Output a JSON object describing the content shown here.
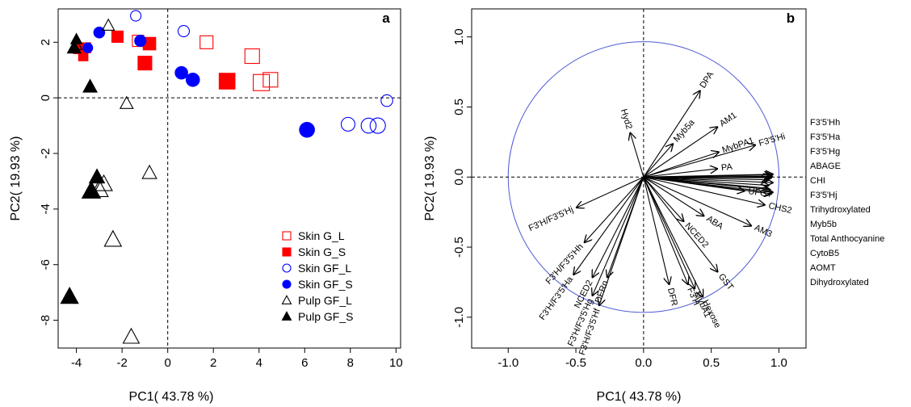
{
  "chart_data": [
    {
      "type": "scatter",
      "panel_label": "a",
      "xlabel": "PC1( 43.78 %)",
      "ylabel": "PC2( 19.93 %)",
      "xlim": [
        -4.8,
        10.2
      ],
      "ylim": [
        -9.0,
        3.2
      ],
      "xticks": [
        -4,
        -2,
        0,
        2,
        4,
        6,
        8,
        10
      ],
      "yticks": [
        -8,
        -6,
        -4,
        -2,
        0,
        2
      ],
      "reference_lines": {
        "x": 0,
        "y": 0,
        "style": "dashed"
      },
      "legend": {
        "position": "bottom-right"
      },
      "series": [
        {
          "name": "Skin G_L",
          "marker": "square",
          "filled": false,
          "color": "#ff0000",
          "points": [
            [
              -1.3,
              2.05,
              0.6
            ],
            [
              1.7,
              2.0,
              0.8
            ],
            [
              3.7,
              1.5,
              1.0
            ],
            [
              4.1,
              0.55,
              1.2
            ],
            [
              4.5,
              0.65,
              1.0
            ],
            [
              -3.6,
              1.8,
              0.45
            ]
          ]
        },
        {
          "name": "Skin G_S",
          "marker": "square",
          "filled": true,
          "color": "#ff0000",
          "points": [
            [
              -3.9,
              1.78,
              0.5
            ],
            [
              -3.7,
              1.5,
              0.35
            ],
            [
              -2.2,
              2.2,
              0.6
            ],
            [
              -0.8,
              1.95,
              0.75
            ],
            [
              -1.0,
              1.25,
              0.9
            ],
            [
              2.6,
              0.6,
              1.15
            ]
          ]
        },
        {
          "name": "Skin GF_L",
          "marker": "circle",
          "filled": false,
          "color": "#0000ff",
          "points": [
            [
              -1.4,
              2.95,
              0.5
            ],
            [
              0.7,
              2.4,
              0.6
            ],
            [
              -3.5,
              1.8,
              0.4
            ],
            [
              7.9,
              -0.95,
              0.9
            ],
            [
              8.8,
              -1.0,
              1.05
            ],
            [
              9.2,
              -1.0,
              1.1
            ],
            [
              9.6,
              -0.1,
              0.65
            ]
          ]
        },
        {
          "name": "Skin GF_S",
          "marker": "circle",
          "filled": true,
          "color": "#0000ff",
          "points": [
            [
              -3.0,
              2.35,
              0.55
            ],
            [
              -1.2,
              2.05,
              0.6
            ],
            [
              0.6,
              0.9,
              0.75
            ],
            [
              1.1,
              0.65,
              0.85
            ],
            [
              6.1,
              -1.15,
              1.05
            ],
            [
              -3.5,
              1.8,
              0.3
            ]
          ]
        },
        {
          "name": "Pulp GF_L",
          "marker": "triangle",
          "filled": false,
          "color": "#000000",
          "points": [
            [
              -2.6,
              2.6,
              0.55
            ],
            [
              -4.0,
              1.9,
              0.45
            ],
            [
              -1.8,
              -0.2,
              0.65
            ],
            [
              -0.8,
              -2.7,
              0.8
            ],
            [
              -2.8,
              -3.1,
              1.1
            ],
            [
              -3.0,
              -3.3,
              1.2
            ],
            [
              -2.4,
              -5.1,
              1.1
            ],
            [
              -1.6,
              -8.6,
              1.0
            ]
          ]
        },
        {
          "name": "Pulp GF_S",
          "marker": "triangle",
          "filled": true,
          "color": "#000000",
          "points": [
            [
              -4.0,
              2.1,
              0.45
            ],
            [
              -4.1,
              1.8,
              0.7
            ],
            [
              -3.4,
              0.4,
              0.75
            ],
            [
              -3.1,
              -2.85,
              0.9
            ],
            [
              -3.35,
              -3.35,
              1.25
            ],
            [
              -4.3,
              -7.15,
              1.15
            ]
          ]
        }
      ]
    },
    {
      "type": "scatter",
      "subtype": "pca-loadings-biplot",
      "panel_label": "b",
      "xlabel": "PC1( 43.78 %)",
      "ylabel": "PC2( 19.93 %)",
      "xlim": [
        -1.27,
        1.2
      ],
      "ylim": [
        -1.22,
        1.2
      ],
      "xticks": [
        -1.0,
        -0.5,
        0.0,
        0.5,
        1.0
      ],
      "xtick_labels": [
        "-1.0",
        "-0.5",
        "0.0",
        "0.5",
        "1.0"
      ],
      "yticks": [
        -1.0,
        -0.5,
        0.0,
        0.5,
        1.0
      ],
      "ytick_labels": [
        "-1.0",
        "-0.5",
        "0.0",
        "0.5",
        "1.0"
      ],
      "unit_circle": true,
      "circle_color": "#4f5bd5",
      "reference_lines": {
        "x": 0,
        "y": 0,
        "style": "dashed"
      },
      "vectors": [
        {
          "label": "DPA",
          "x": 0.42,
          "y": 0.62
        },
        {
          "label": "Hyd2",
          "x": -0.1,
          "y": 0.32
        },
        {
          "label": "Myb5a",
          "x": 0.22,
          "y": 0.24
        },
        {
          "label": "AM1",
          "x": 0.55,
          "y": 0.36
        },
        {
          "label": "MybPA1",
          "x": 0.56,
          "y": 0.18
        },
        {
          "label": "F3'5'Hi",
          "x": 0.83,
          "y": 0.23
        },
        {
          "label": "PA",
          "x": 0.55,
          "y": 0.06
        },
        {
          "label": "F3'5'Hh",
          "x": 0.96,
          "y": 0.02
        },
        {
          "label": "F3'5'Ha",
          "x": 0.95,
          "y": 0.015
        },
        {
          "label": "F3'5'Hg",
          "x": 0.955,
          "y": 0.005
        },
        {
          "label": "ABAGE",
          "x": 0.94,
          "y": 0.0
        },
        {
          "label": "CHI",
          "x": 0.95,
          "y": -0.005
        },
        {
          "label": "F3'5'Hj",
          "x": 0.93,
          "y": -0.02
        },
        {
          "label": "Trihydroxylated",
          "x": 0.96,
          "y": -0.04
        },
        {
          "label": "Myb5b",
          "x": 0.93,
          "y": -0.06
        },
        {
          "label": "Total Anthocyanine",
          "x": 0.92,
          "y": -0.08
        },
        {
          "label": "CytoB5",
          "x": 0.94,
          "y": -0.09
        },
        {
          "label": "AOMT",
          "x": 0.96,
          "y": -0.11
        },
        {
          "label": "Dihydroxylated",
          "x": 0.95,
          "y": -0.12
        },
        {
          "label": "UFGT",
          "x": 0.75,
          "y": -0.1
        },
        {
          "label": "CHS2",
          "x": 0.9,
          "y": -0.2
        },
        {
          "label": "AM3",
          "x": 0.8,
          "y": -0.35
        },
        {
          "label": "ABA",
          "x": 0.45,
          "y": -0.28
        },
        {
          "label": "NCED2",
          "x": 0.3,
          "y": -0.32
        },
        {
          "label": "GST",
          "x": 0.55,
          "y": -0.68
        },
        {
          "label": "Hexose",
          "x": 0.44,
          "y": -0.86
        },
        {
          "label": "MybA1",
          "x": 0.38,
          "y": -0.8
        },
        {
          "label": "F3'H",
          "x": 0.33,
          "y": -0.77
        },
        {
          "label": "DFR",
          "x": 0.19,
          "y": -0.77
        },
        {
          "label": "F3'H/F3'5'Hj",
          "x": -0.5,
          "y": -0.22
        },
        {
          "label": "F3'H/F3'5'Hh",
          "x": -0.44,
          "y": -0.47
        },
        {
          "label": "F3'H/F3'5'Ha",
          "x": -0.52,
          "y": -0.7
        },
        {
          "label": "NCED2",
          "x": -0.38,
          "y": -0.72
        },
        {
          "label": "DFRn",
          "x": -0.27,
          "y": -0.72
        },
        {
          "label": "F3'H/F3'5'Hg",
          "x": -0.38,
          "y": -0.85
        },
        {
          "label": "F3'H/F3'5'Hf",
          "x": -0.33,
          "y": -0.92
        }
      ]
    }
  ]
}
